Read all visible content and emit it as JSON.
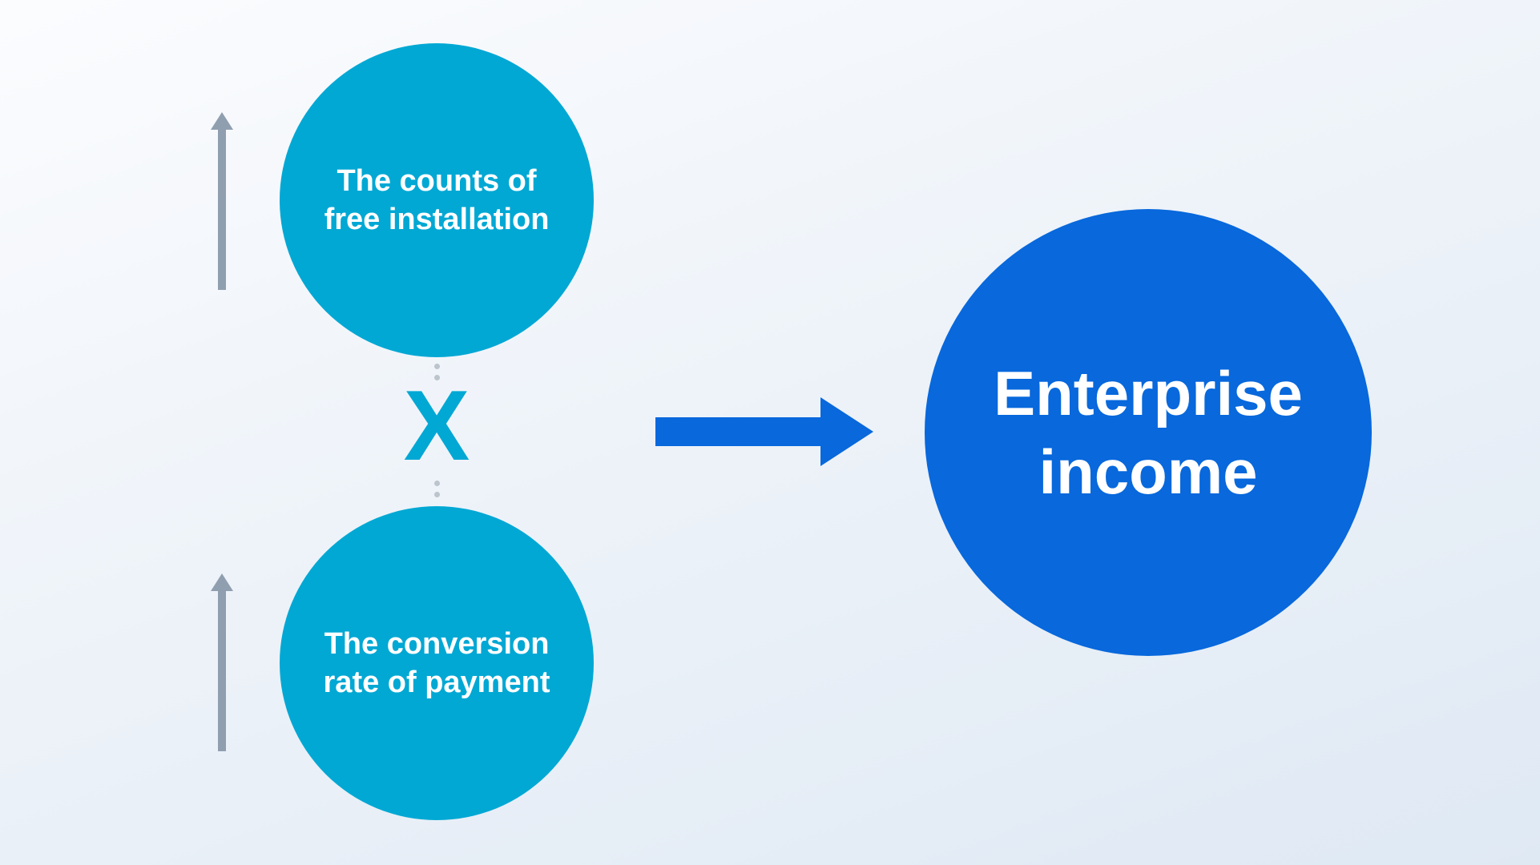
{
  "diagram": {
    "factor_top": {
      "label": "The counts of\nfree installation"
    },
    "factor_bottom": {
      "label": "The conversion\nrate of payment"
    },
    "operator": {
      "symbol": "X"
    },
    "result": {
      "label": "Enterprise\nincome"
    }
  },
  "colors": {
    "factor_fill": "#02a8d4",
    "result_fill": "#0868dc",
    "operator": "#02a8d4",
    "flow_arrow": "#0868dc",
    "trend_arrow": "#909fb0",
    "connector_dots": "#bcc4cc"
  },
  "icons": {
    "trend_top": "arrow-up-icon",
    "trend_bottom": "arrow-up-icon",
    "flow": "arrow-right-icon"
  }
}
